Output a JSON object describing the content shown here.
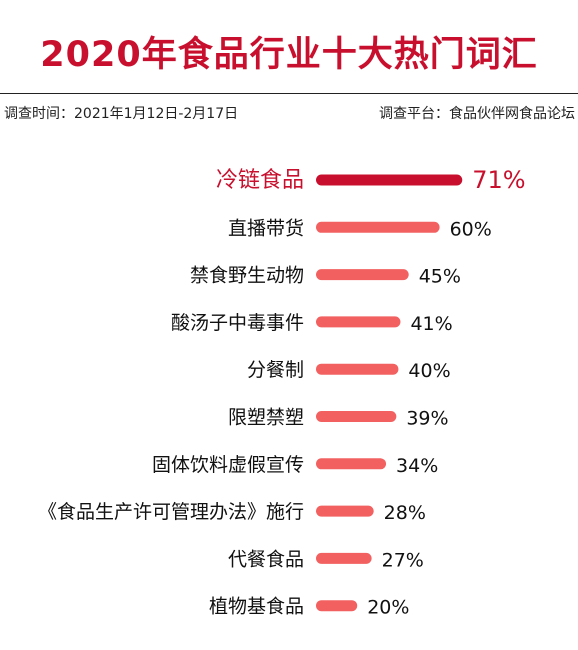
{
  "header": {
    "title": "2020年食品行业十大热门词汇",
    "survey_time": "调查时间：2021年1月12日-2月17日",
    "survey_platform": "调查平台：食品伙伴网食品论坛"
  },
  "colors": {
    "title": "#c8102e",
    "highlight_bar": "#c8102e",
    "bar": "#f26060"
  },
  "chart_data": {
    "type": "bar",
    "orientation": "horizontal",
    "title": "2020年食品行业十大热门词汇",
    "categories": [
      "冷链食品",
      "直播带货",
      "禁食野生动物",
      "酸汤子中毒事件",
      "分餐制",
      "限塑禁塑",
      "固体饮料虚假宣传",
      "《食品生产许可管理办法》施行",
      "代餐食品",
      "植物基食品"
    ],
    "values": [
      71,
      60,
      45,
      41,
      40,
      39,
      34,
      28,
      27,
      20
    ],
    "value_labels": [
      "71%",
      "60%",
      "45%",
      "41%",
      "40%",
      "39%",
      "34%",
      "28%",
      "27%",
      "20%"
    ],
    "unit": "%",
    "highlight_index": 0,
    "grid": false,
    "legend": "none"
  }
}
